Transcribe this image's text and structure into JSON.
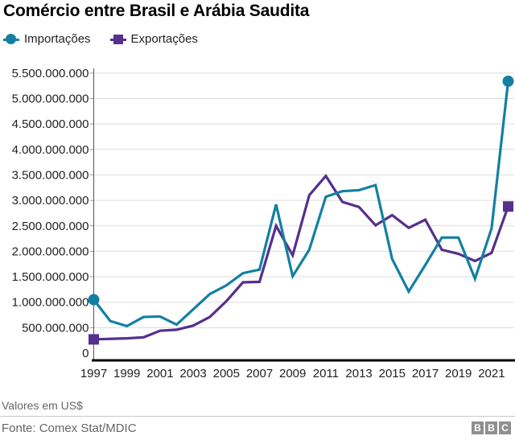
{
  "header": {
    "title": "Comércio entre Brasil e Arábia Saudita"
  },
  "chart_data": {
    "type": "line",
    "title": "Comércio entre Brasil e Arábia Saudita",
    "x_years": [
      1997,
      1998,
      1999,
      2000,
      2001,
      2002,
      2003,
      2004,
      2005,
      2006,
      2007,
      2008,
      2009,
      2010,
      2011,
      2012,
      2013,
      2014,
      2015,
      2016,
      2017,
      2018,
      2019,
      2020,
      2021,
      2022
    ],
    "series": [
      {
        "name": "Importações",
        "color": "#1380A1",
        "endpoint_marker": "circle",
        "values": [
          1050000000,
          630000000,
          530000000,
          710000000,
          720000000,
          560000000,
          860000000,
          1160000000,
          1330000000,
          1570000000,
          1640000000,
          2920000000,
          1510000000,
          2030000000,
          3070000000,
          3180000000,
          3200000000,
          3300000000,
          1850000000,
          1210000000,
          1730000000,
          2270000000,
          2270000000,
          1460000000,
          2450000000,
          5340000000
        ]
      },
      {
        "name": "Exportações",
        "color": "#55308d",
        "endpoint_marker": "square",
        "values": [
          270000000,
          280000000,
          290000000,
          310000000,
          440000000,
          460000000,
          540000000,
          710000000,
          1020000000,
          1390000000,
          1400000000,
          2500000000,
          1920000000,
          3100000000,
          3480000000,
          2970000000,
          2870000000,
          2510000000,
          2710000000,
          2460000000,
          2620000000,
          2030000000,
          1950000000,
          1810000000,
          1970000000,
          2880000000
        ]
      }
    ],
    "y_axis": {
      "min": 0,
      "max": 5500000000,
      "tick_step": 500000000,
      "tick_labels": [
        "0",
        "500.000.000",
        "1.000.000.000",
        "1.500.000.000",
        "2.000.000.000",
        "2.500.000.000",
        "3.000.000.000",
        "3.500.000.000",
        "4.000.000.000",
        "4.500.000.000",
        "5.000.000.000",
        "5.500.000.000"
      ]
    },
    "x_axis": {
      "tick_labels": [
        "1997",
        "1999",
        "2001",
        "2003",
        "2005",
        "2007",
        "2009",
        "2011",
        "2013",
        "2015",
        "2017",
        "2019",
        "2021"
      ]
    },
    "grid": "horizontal",
    "legend_position": "top-left"
  },
  "footer": {
    "caption": "Valores em US$",
    "source": "Fonte: Comex Stat/MDIC",
    "logo_letters": [
      "B",
      "B",
      "C"
    ]
  },
  "colors": {
    "grid": "#dcdcdc",
    "axis": "#000000",
    "tick": "#999999",
    "text": "#222222",
    "muted_text": "#666666",
    "logo_gray": "#8f8f8f"
  }
}
